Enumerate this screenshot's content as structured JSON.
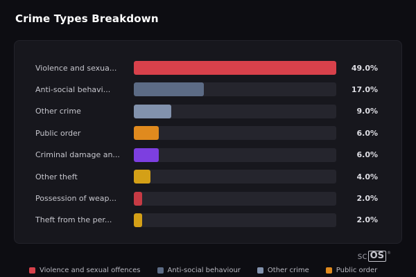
{
  "header": {
    "title": "Crime Types Breakdown"
  },
  "chart_data": {
    "type": "bar",
    "orientation": "horizontal",
    "title": "Crime Types Breakdown",
    "max_value": 49.0,
    "categories": [
      "Violence and sexua...",
      "Anti-social behavi...",
      "Other crime",
      "Public order",
      "Criminal damage an...",
      "Other theft",
      "Possession of weap...",
      "Theft from the per..."
    ],
    "values": [
      49.0,
      17.0,
      9.0,
      6.0,
      6.0,
      4.0,
      2.0,
      2.0
    ],
    "value_labels": [
      "49.0%",
      "17.0%",
      "9.0%",
      "6.0%",
      "6.0%",
      "4.0%",
      "2.0%",
      " 2.0%"
    ],
    "bar_colors": [
      "#d8414b",
      "#5c6b85",
      "#8292ad",
      "#e08a1e",
      "#7d3fe0",
      "#d4a017",
      "#c63a44",
      "#d4a017"
    ],
    "track_color": "#25252d",
    "legend_position": "bottom"
  },
  "rows": [
    {
      "label": "Violence and sexua...",
      "value": 49.0,
      "value_label": "49.0%",
      "color": "#d8414b"
    },
    {
      "label": "Anti-social behavi...",
      "value": 17.0,
      "value_label": "17.0%",
      "color": "#5c6b85"
    },
    {
      "label": "Other crime",
      "value": 9.0,
      "value_label": "9.0%",
      "color": "#8292ad"
    },
    {
      "label": "Public order",
      "value": 6.0,
      "value_label": "6.0%",
      "color": "#e08a1e"
    },
    {
      "label": "Criminal damage an...",
      "value": 6.0,
      "value_label": "6.0%",
      "color": "#7d3fe0"
    },
    {
      "label": "Other theft",
      "value": 4.0,
      "value_label": "4.0%",
      "color": "#d4a017"
    },
    {
      "label": "Possession of weap...",
      "value": 2.0,
      "value_label": "2.0%",
      "color": "#c63a44"
    },
    {
      "label": "Theft from the per...",
      "value": 2.0,
      "value_label": "2.0%",
      "color": "#d4a017"
    }
  ],
  "legend": {
    "items": [
      {
        "label": "Violence and sexual offences",
        "color": "#d8414b"
      },
      {
        "label": "Anti-social behaviour",
        "color": "#5c6b85"
      },
      {
        "label": "Other crime",
        "color": "#8292ad"
      },
      {
        "label": "Public order",
        "color": "#e08a1e"
      }
    ]
  },
  "branding": {
    "prefix": "sc",
    "suffix": "OS",
    "reg": "®"
  }
}
